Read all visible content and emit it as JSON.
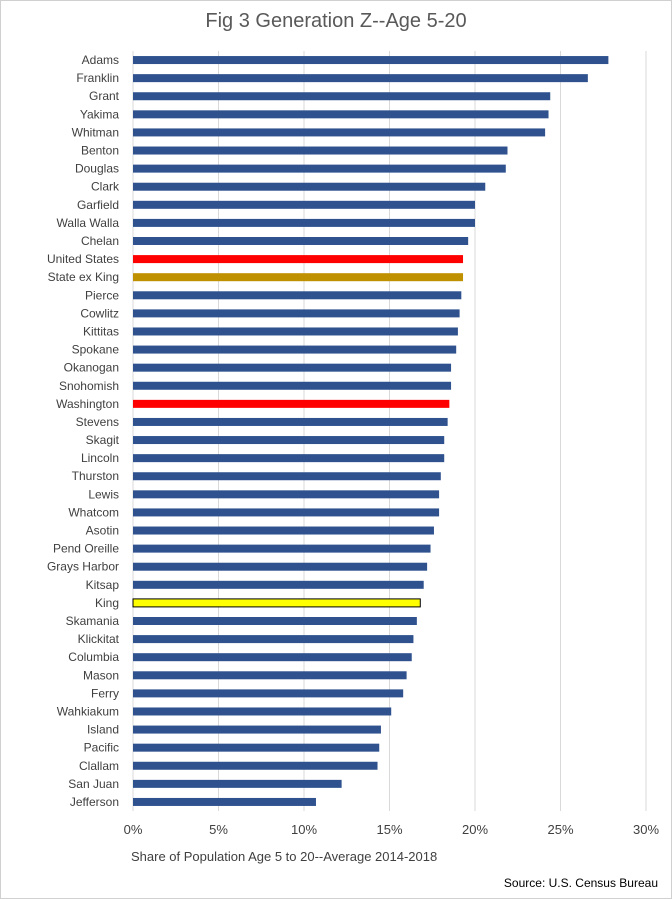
{
  "chart_data": {
    "type": "bar",
    "orientation": "horizontal",
    "title": "Fig 3 Generation Z--Age 5-20",
    "xlabel": "Share of Population Age 5 to 20--Average 2014-2018",
    "source": "Source: U.S. Census Bureau",
    "xlim": [
      0,
      30
    ],
    "ticks": [
      "0%",
      "5%",
      "10%",
      "15%",
      "20%",
      "25%",
      "30%"
    ],
    "tick_values": [
      0,
      5,
      10,
      15,
      20,
      25,
      30
    ],
    "grid": true,
    "legend": "none",
    "colors": {
      "default": "#2F528F",
      "United States": "#FF0000",
      "Washington": "#FF0000",
      "State ex King": "#BF9000",
      "King": "#FFFF00"
    },
    "categories": [
      "Adams",
      "Franklin",
      "Grant",
      "Yakima",
      "Whitman",
      "Benton",
      "Douglas",
      "Clark",
      "Garfield",
      "Walla Walla",
      "Chelan",
      "United States",
      "State ex King",
      "Pierce",
      "Cowlitz",
      "Kittitas",
      "Spokane",
      "Okanogan",
      "Snohomish",
      "Washington",
      "Stevens",
      "Skagit",
      "Lincoln",
      "Thurston",
      "Lewis",
      "Whatcom",
      "Asotin",
      "Pend Oreille",
      "Grays Harbor",
      "Kitsap",
      "King",
      "Skamania",
      "Klickitat",
      "Columbia",
      "Mason",
      "Ferry",
      "Wahkiakum",
      "Island",
      "Pacific",
      "Clallam",
      "San Juan",
      "Jefferson"
    ],
    "values": [
      27.8,
      26.6,
      24.4,
      24.3,
      24.1,
      21.9,
      21.8,
      20.6,
      20.0,
      20.0,
      19.6,
      19.3,
      19.3,
      19.2,
      19.1,
      19.0,
      18.9,
      18.6,
      18.6,
      18.5,
      18.4,
      18.2,
      18.2,
      18.0,
      17.9,
      17.9,
      17.6,
      17.4,
      17.2,
      17.0,
      16.8,
      16.6,
      16.4,
      16.3,
      16.0,
      15.8,
      15.1,
      14.5,
      14.4,
      14.3,
      12.2,
      10.7
    ]
  }
}
